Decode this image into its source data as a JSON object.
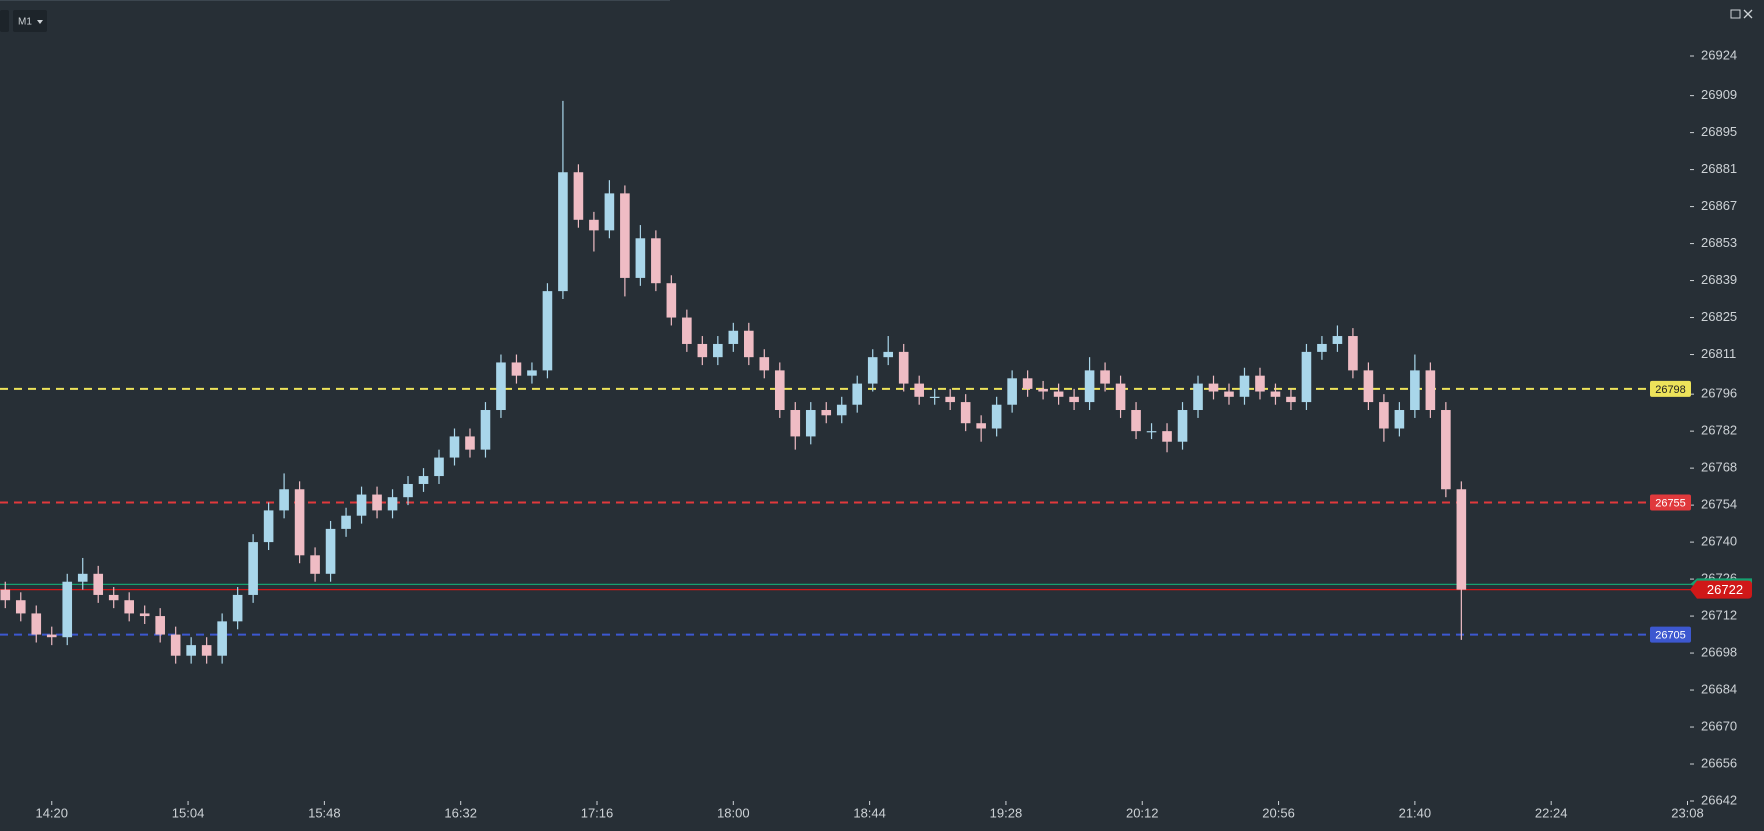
{
  "toolbar": {
    "timeframe": "M1"
  },
  "chart_data": {
    "type": "candlestick",
    "time": [
      "14:05",
      "14:10",
      "14:15",
      "14:20",
      "14:25",
      "14:30",
      "14:35",
      "14:40",
      "14:45",
      "14:50",
      "14:55",
      "15:00",
      "15:05",
      "15:10",
      "15:15",
      "15:20",
      "15:25",
      "15:30",
      "15:35",
      "15:40",
      "15:45",
      "15:50",
      "15:55",
      "16:00",
      "16:05",
      "16:10",
      "16:15",
      "16:20",
      "16:25",
      "16:30",
      "16:35",
      "16:40",
      "16:45",
      "16:50",
      "16:55",
      "17:00",
      "17:05",
      "17:10",
      "17:15",
      "17:20",
      "17:25",
      "17:30",
      "17:35",
      "17:40",
      "17:45",
      "17:50",
      "17:55",
      "18:00",
      "18:05",
      "18:10",
      "18:15",
      "18:20",
      "18:25",
      "18:30",
      "18:35",
      "18:40",
      "18:45",
      "18:50",
      "18:55",
      "19:00",
      "19:05",
      "19:10",
      "19:15",
      "19:20",
      "19:25",
      "19:30",
      "19:35",
      "19:40",
      "19:45",
      "19:50",
      "19:55",
      "20:00",
      "20:05",
      "20:10",
      "20:15",
      "20:20",
      "20:25",
      "20:30",
      "20:35",
      "20:40",
      "20:45",
      "20:50",
      "20:55",
      "21:00",
      "21:05",
      "21:10",
      "21:15",
      "21:20",
      "21:25",
      "21:30",
      "21:35",
      "21:40",
      "21:45",
      "21:50",
      "21:55"
    ],
    "open": [
      26722,
      26718,
      26713,
      26705,
      26704,
      26725,
      26728,
      26720,
      26718,
      26713,
      26712,
      26705,
      26697,
      26701,
      26697,
      26710,
      26720,
      26740,
      26752,
      26760,
      26735,
      26728,
      26745,
      26750,
      26758,
      26752,
      26757,
      26762,
      26765,
      26772,
      26780,
      26775,
      26790,
      26808,
      26803,
      26805,
      26835,
      26880,
      26862,
      26858,
      26872,
      26840,
      26855,
      26838,
      26825,
      26815,
      26810,
      26815,
      26820,
      26810,
      26805,
      26790,
      26780,
      26790,
      26788,
      26792,
      26800,
      26810,
      26812,
      26800,
      26795,
      26795,
      26793,
      26785,
      26783,
      26792,
      26802,
      26798,
      26797,
      26795,
      26793,
      26805,
      26800,
      26790,
      26782,
      26782,
      26778,
      26790,
      26800,
      26797,
      26795,
      26803,
      26797,
      26795,
      26793,
      26812,
      26815,
      26818,
      26805,
      26793,
      26783,
      26790,
      26805,
      26790,
      26760
    ],
    "high": [
      26725,
      26721,
      26716,
      26708,
      26728,
      26734,
      26731,
      26723,
      26721,
      26716,
      26715,
      26708,
      26704,
      26704,
      26713,
      26723,
      26743,
      26755,
      26766,
      26763,
      26738,
      26748,
      26753,
      26761,
      26761,
      26760,
      26765,
      26768,
      26775,
      26783,
      26783,
      26793,
      26811,
      26811,
      26808,
      26838,
      26907,
      26883,
      26865,
      26877,
      26875,
      26860,
      26858,
      26841,
      26828,
      26818,
      26818,
      26823,
      26823,
      26813,
      26808,
      26793,
      26793,
      26793,
      26795,
      26803,
      26813,
      26818,
      26815,
      26803,
      26798,
      26798,
      26796,
      26788,
      26795,
      26805,
      26805,
      26801,
      26800,
      26798,
      26810,
      26808,
      26803,
      26793,
      26785,
      26785,
      26793,
      26803,
      26803,
      26800,
      26806,
      26806,
      26800,
      26798,
      26815,
      26818,
      26822,
      26821,
      26808,
      26796,
      26793,
      26811,
      26808,
      26793,
      26763
    ],
    "low": [
      26715,
      26710,
      26702,
      26701,
      26701,
      26722,
      26717,
      26715,
      26710,
      26709,
      26702,
      26694,
      26694,
      26694,
      26694,
      26707,
      26717,
      26737,
      26749,
      26732,
      26725,
      26725,
      26742,
      26747,
      26749,
      26749,
      26754,
      26759,
      26762,
      26769,
      26772,
      26772,
      26787,
      26800,
      26800,
      26802,
      26832,
      26859,
      26850,
      26855,
      26833,
      26837,
      26835,
      26822,
      26812,
      26807,
      26807,
      26812,
      26807,
      26802,
      26787,
      26775,
      26777,
      26785,
      26785,
      26789,
      26797,
      26807,
      26797,
      26792,
      26792,
      26790,
      26782,
      26778,
      26780,
      26789,
      26795,
      26794,
      26792,
      26790,
      26790,
      26797,
      26787,
      26779,
      26779,
      26774,
      26775,
      26787,
      26794,
      26792,
      26792,
      26794,
      26792,
      26790,
      26790,
      26809,
      26812,
      26802,
      26790,
      26778,
      26780,
      26787,
      26787,
      26757,
      26703
    ],
    "close": [
      26718,
      26713,
      26705,
      26704,
      26725,
      26728,
      26720,
      26718,
      26713,
      26712,
      26705,
      26697,
      26701,
      26697,
      26710,
      26720,
      26740,
      26752,
      26760,
      26735,
      26728,
      26745,
      26750,
      26758,
      26752,
      26757,
      26762,
      26765,
      26772,
      26780,
      26775,
      26790,
      26808,
      26803,
      26805,
      26835,
      26880,
      26862,
      26858,
      26872,
      26840,
      26855,
      26838,
      26825,
      26815,
      26810,
      26815,
      26820,
      26810,
      26805,
      26790,
      26780,
      26790,
      26788,
      26792,
      26800,
      26810,
      26812,
      26800,
      26795,
      26795,
      26793,
      26785,
      26783,
      26792,
      26802,
      26798,
      26797,
      26795,
      26793,
      26805,
      26800,
      26790,
      26782,
      26782,
      26778,
      26790,
      26800,
      26797,
      26795,
      26803,
      26797,
      26795,
      26793,
      26812,
      26815,
      26818,
      26805,
      26793,
      26783,
      26790,
      26805,
      26790,
      26760,
      26722
    ],
    "up_color": "#a9d6ea",
    "down_color": "#efbcc4",
    "xlim": [
      "14:20",
      "23:08"
    ],
    "xticks": [
      "14:20",
      "15:04",
      "15:48",
      "16:32",
      "17:16",
      "18:00",
      "18:44",
      "19:28",
      "20:12",
      "20:56",
      "21:40",
      "22:24",
      "23:08"
    ],
    "ylim": [
      26642,
      26924
    ],
    "yticks": [
      26924,
      26909,
      26895,
      26881,
      26867,
      26853,
      26839,
      26825,
      26811,
      26796,
      26782,
      26768,
      26754,
      26740,
      26726,
      26712,
      26698,
      26684,
      26670,
      26656,
      26642
    ],
    "levels": [
      {
        "value": 26798,
        "color": "#ede35a",
        "style": "dashed",
        "text_color": "#222222"
      },
      {
        "value": 26755,
        "color": "#e0393c",
        "style": "dashed",
        "text_color": "#ffffff"
      },
      {
        "value": 26705,
        "color": "#3d58d0",
        "style": "dashed",
        "text_color": "#ffffff"
      },
      {
        "value": 26724,
        "color": "#16a070",
        "style": "solid"
      },
      {
        "value": 26722,
        "color": "#d01818",
        "style": "solid",
        "text_color": "#ffffff"
      }
    ]
  }
}
